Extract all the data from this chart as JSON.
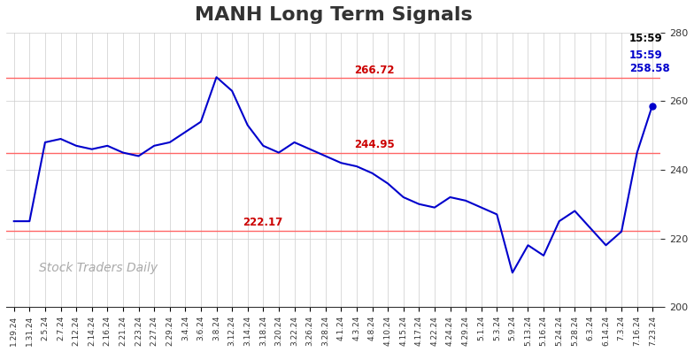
{
  "title": "MANH Long Term Signals",
  "title_color": "#333333",
  "title_fontsize": 16,
  "title_fontweight": "bold",
  "background_color": "#ffffff",
  "line_color": "#0000cc",
  "line_width": 1.5,
  "grid_color": "#cccccc",
  "red_line_color": "#ff6666",
  "red_lines": [
    266.72,
    244.95,
    222.17
  ],
  "red_line_labels": [
    "266.72",
    "244.95",
    "222.17"
  ],
  "red_label_color": "#cc0000",
  "ylim": [
    200,
    280
  ],
  "yticks": [
    200,
    220,
    240,
    260,
    280
  ],
  "watermark": "Stock Traders Daily",
  "watermark_color": "#aaaaaa",
  "last_label": "15:59",
  "last_value": "258.58",
  "last_label_color": "#000000",
  "last_value_color": "#0000cc",
  "x_labels": [
    "1.29.24",
    "1.31.24",
    "2.5.24",
    "2.7.24",
    "2.12.24",
    "2.14.24",
    "2.16.24",
    "2.21.24",
    "2.23.24",
    "2.27.24",
    "2.29.24",
    "3.4.24",
    "3.6.24",
    "3.8.24",
    "3.12.24",
    "3.14.24",
    "3.18.24",
    "3.20.24",
    "3.22.24",
    "3.26.24",
    "3.28.24",
    "4.1.24",
    "4.3.24",
    "4.8.24",
    "4.10.24",
    "4.15.24",
    "4.17.24",
    "4.22.24",
    "4.24.24",
    "4.29.24",
    "5.1.24",
    "5.3.24",
    "5.9.24",
    "5.13.24",
    "5.16.24",
    "5.24.24",
    "5.28.24",
    "6.3.24",
    "6.14.24",
    "7.3.24",
    "7.16.24",
    "7.23.24"
  ],
  "y_values": [
    225,
    225,
    248,
    249,
    247,
    246,
    247,
    245,
    244,
    247,
    248,
    251,
    254,
    267,
    263,
    253,
    247,
    245,
    248,
    246,
    244,
    242,
    241,
    239,
    236,
    232,
    230,
    229,
    232,
    231,
    229,
    227,
    210,
    218,
    215,
    225,
    228,
    223,
    218,
    222,
    245,
    259
  ]
}
